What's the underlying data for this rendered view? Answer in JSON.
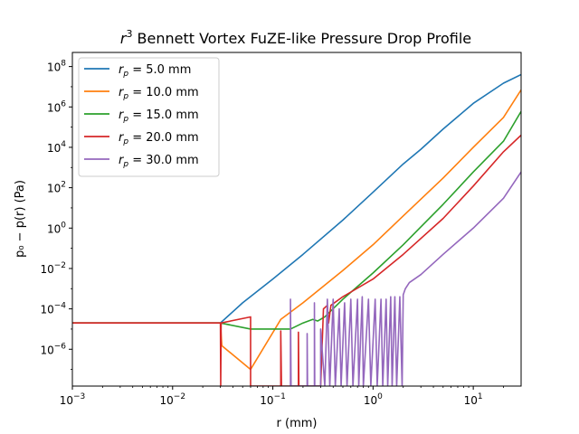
{
  "chart_data": {
    "type": "line",
    "title_prefix": "r",
    "title_sup": "3",
    "title_rest": " Bennett Vortex FuZE-like Pressure Drop Profile",
    "xlabel": "r (mm)",
    "ylabel": "p₀ − p(r) (Pa)",
    "xscale": "log",
    "yscale": "log",
    "xlim": [
      0.001,
      30
    ],
    "ylim": [
      1.5e-08,
      500000000.0
    ],
    "legend_position": "upper left",
    "x_ticks": [
      {
        "value": 0.001,
        "base": "10",
        "exp": "−3"
      },
      {
        "value": 0.01,
        "base": "10",
        "exp": "−2"
      },
      {
        "value": 0.1,
        "base": "10",
        "exp": "−1"
      },
      {
        "value": 1,
        "base": "10",
        "exp": "0"
      },
      {
        "value": 10,
        "base": "10",
        "exp": "1"
      }
    ],
    "y_ticks": [
      {
        "value": 1e-06,
        "base": "10",
        "exp": "−6"
      },
      {
        "value": 0.0001,
        "base": "10",
        "exp": "−4"
      },
      {
        "value": 0.01,
        "base": "10",
        "exp": "−2"
      },
      {
        "value": 1,
        "base": "10",
        "exp": "0"
      },
      {
        "value": 100.0,
        "base": "10",
        "exp": "2"
      },
      {
        "value": 10000.0,
        "base": "10",
        "exp": "4"
      },
      {
        "value": 1000000.0,
        "base": "10",
        "exp": "6"
      },
      {
        "value": 100000000.0,
        "base": "10",
        "exp": "8"
      }
    ],
    "series": [
      {
        "name": "r_p = 5.0 mm",
        "legend_sym": "r",
        "legend_sub": "p",
        "legend_val": " = 5.0 mm",
        "color": "#1f77b4",
        "points": [
          [
            0.001,
            2e-05
          ],
          [
            0.03,
            2e-05
          ],
          [
            0.05,
            0.0002
          ],
          [
            0.1,
            0.003
          ],
          [
            0.2,
            0.05
          ],
          [
            0.5,
            2.5
          ],
          [
            1,
            60
          ],
          [
            2,
            1500
          ],
          [
            3,
            8000
          ],
          [
            5,
            80000.0
          ],
          [
            10,
            1500000.0
          ],
          [
            20,
            15000000.0
          ],
          [
            30,
            40000000.0
          ]
        ]
      },
      {
        "name": "r_p = 10.0 mm",
        "legend_sym": "r",
        "legend_sub": "p",
        "legend_val": " = 10.0 mm",
        "color": "#ff7f0e",
        "points": [
          [
            0.001,
            2e-05
          ],
          [
            0.03,
            2e-05
          ],
          [
            0.031,
            1.5e-06
          ],
          [
            0.06,
            1e-07
          ],
          [
            0.12,
            3e-05
          ],
          [
            0.2,
            0.0002
          ],
          [
            0.5,
            0.008
          ],
          [
            1,
            0.15
          ],
          [
            2,
            4
          ],
          [
            5,
            300
          ],
          [
            10,
            10000.0
          ],
          [
            20,
            300000.0
          ],
          [
            30,
            7000000.0
          ]
        ]
      },
      {
        "name": "r_p = 15.0 mm",
        "legend_sym": "r",
        "legend_sub": "p",
        "legend_val": " = 15.0 mm",
        "color": "#2ca02c",
        "points": [
          [
            0.001,
            2e-05
          ],
          [
            0.03,
            2e-05
          ],
          [
            0.06,
            1e-05
          ],
          [
            0.15,
            1e-05
          ],
          [
            0.2,
            2e-05
          ],
          [
            0.25,
            3e-05
          ],
          [
            0.28,
            2.5e-05
          ],
          [
            0.33,
            4e-05
          ],
          [
            0.5,
            0.0003
          ],
          [
            1,
            0.006
          ],
          [
            2,
            0.15
          ],
          [
            5,
            15
          ],
          [
            10,
            600
          ],
          [
            20,
            20000.0
          ],
          [
            30,
            600000.0
          ]
        ]
      },
      {
        "name": "r_p = 20.0 mm",
        "legend_sym": "r",
        "legend_sub": "p",
        "legend_val": " = 20.0 mm",
        "color": "#d62728",
        "points": [
          [
            0.001,
            2e-05
          ],
          [
            0.03,
            2e-05
          ],
          [
            0.0302,
            1.5e-08
          ],
          [
            0.0305,
            2e-05
          ],
          [
            0.06,
            4e-05
          ],
          [
            0.06,
            1.5e-08
          ],
          [
            0.12,
            1.5e-08
          ],
          [
            0.12,
            8e-06
          ],
          [
            0.122,
            1.5e-08
          ],
          [
            0.18,
            1.5e-08
          ],
          [
            0.18,
            7e-06
          ],
          [
            0.182,
            1.5e-08
          ],
          [
            0.3,
            1.5e-08
          ],
          [
            0.32,
            0.0001
          ],
          [
            0.35,
            0.00015
          ],
          [
            0.36,
            2e-05
          ],
          [
            0.38,
            0.00015
          ],
          [
            0.5,
            0.0004
          ],
          [
            1,
            0.003
          ],
          [
            2,
            0.05
          ],
          [
            5,
            3
          ],
          [
            10,
            120
          ],
          [
            20,
            6000.0
          ],
          [
            30,
            40000.0
          ]
        ]
      },
      {
        "name": "r_p = 30.0 mm",
        "legend_sym": "r",
        "legend_sub": "p",
        "legend_val": " = 30.0 mm",
        "color": "#9467bd",
        "points": [
          [
            0.15,
            1.5e-08
          ],
          [
            0.15,
            0.0003
          ],
          [
            0.152,
            1.5e-08
          ],
          [
            0.22,
            1.5e-08
          ],
          [
            0.22,
            6e-06
          ],
          [
            0.222,
            1.5e-08
          ],
          [
            0.26,
            1.5e-08
          ],
          [
            0.26,
            0.0002
          ],
          [
            0.262,
            1.5e-08
          ],
          [
            0.3,
            1.5e-08
          ],
          [
            0.3,
            1e-05
          ],
          [
            0.33,
            1.5e-08
          ],
          [
            0.35,
            0.0003
          ],
          [
            0.37,
            1.5e-08
          ],
          [
            0.4,
            0.0003
          ],
          [
            0.42,
            1.5e-08
          ],
          [
            0.46,
            0.0001
          ],
          [
            0.48,
            1.5e-08
          ],
          [
            0.52,
            0.0002
          ],
          [
            0.55,
            1.5e-08
          ],
          [
            0.6,
            0.0003
          ],
          [
            0.63,
            1.5e-08
          ],
          [
            0.7,
            0.0003
          ],
          [
            0.72,
            1.5e-08
          ],
          [
            0.78,
            0.0004
          ],
          [
            0.8,
            1.5e-08
          ],
          [
            0.9,
            0.0003
          ],
          [
            0.95,
            1.5e-08
          ],
          [
            1.05,
            0.0003
          ],
          [
            1.1,
            1.5e-08
          ],
          [
            1.2,
            0.0003
          ],
          [
            1.25,
            1.5e-08
          ],
          [
            1.35,
            0.0003
          ],
          [
            1.4,
            1.5e-08
          ],
          [
            1.5,
            0.0004
          ],
          [
            1.55,
            1.5e-08
          ],
          [
            1.65,
            0.0004
          ],
          [
            1.72,
            1.5e-08
          ],
          [
            1.85,
            0.0004
          ],
          [
            1.95,
            1.5e-08
          ],
          [
            2.0,
            0.0005
          ],
          [
            2.1,
            0.001
          ],
          [
            2.3,
            0.002
          ],
          [
            3,
            0.005
          ],
          [
            5,
            0.05
          ],
          [
            10,
            1
          ],
          [
            20,
            30
          ],
          [
            30,
            600
          ]
        ]
      }
    ]
  }
}
